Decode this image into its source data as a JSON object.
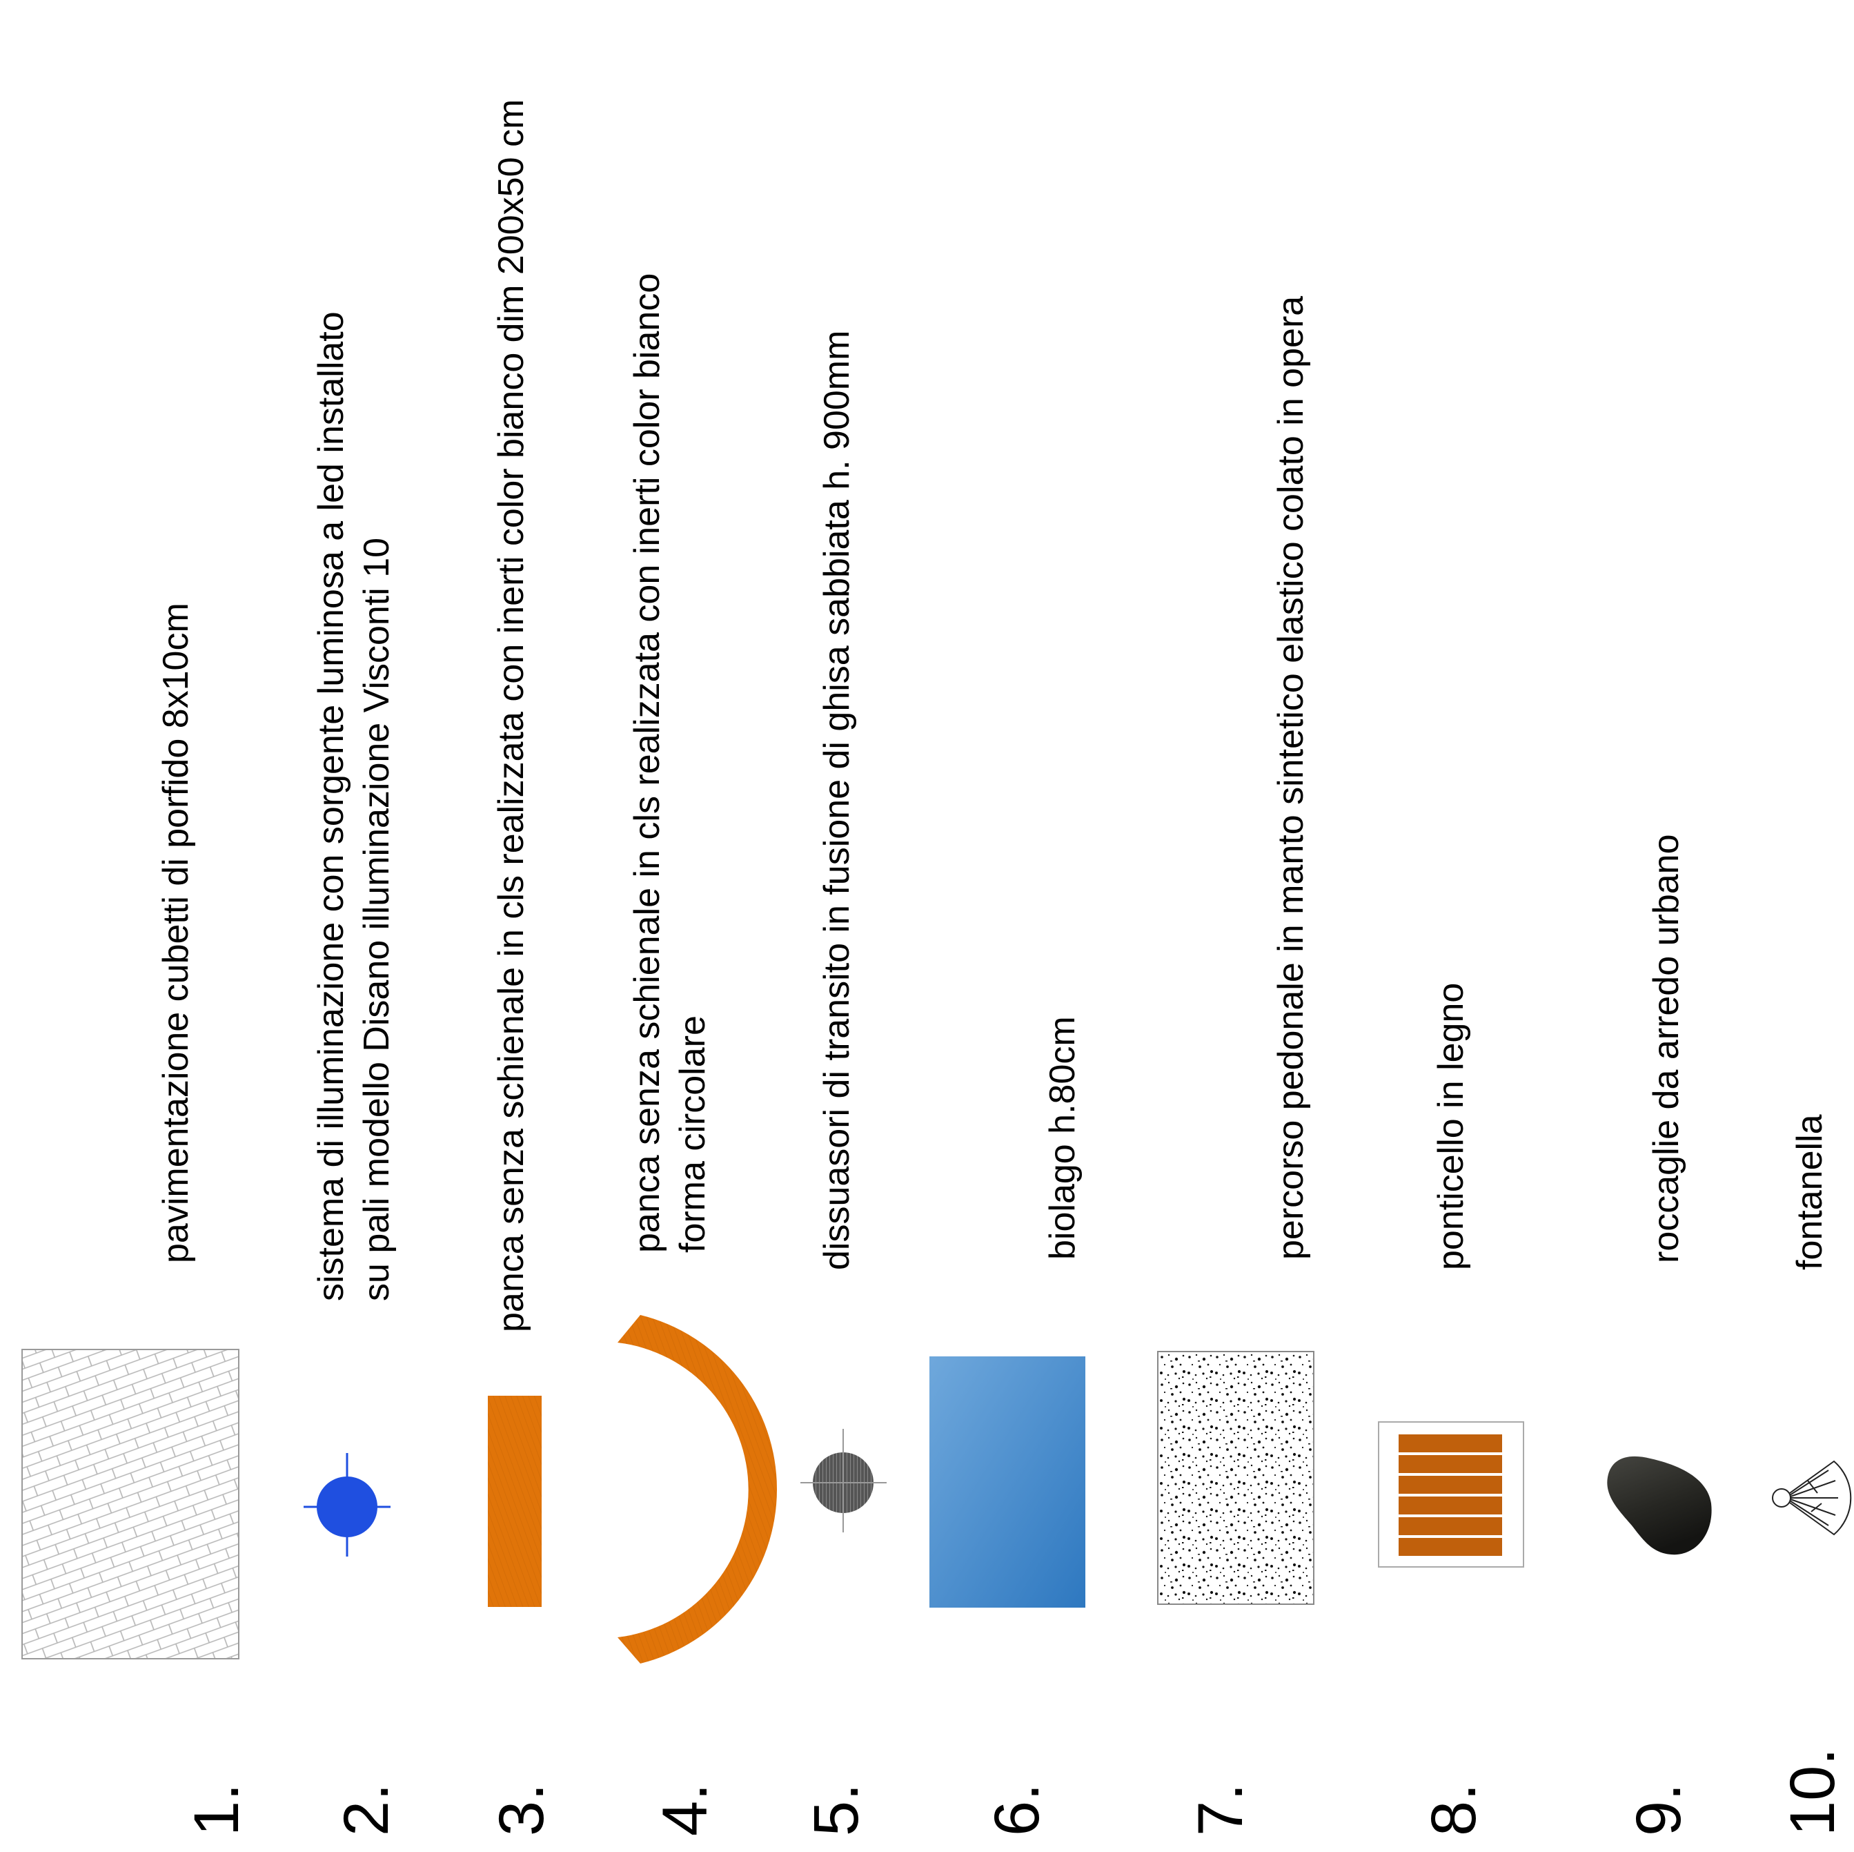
{
  "legend": {
    "items": [
      {
        "number": "1.",
        "lines": [
          "pavimentazione cubetti di porfido 8x10cm"
        ],
        "symbol": "paving-hatch-icon"
      },
      {
        "number": "2.",
        "lines": [
          "sistema di illuminazione con sorgente luminosa a led installato",
          "su pali modello Disano illuminazione Visconti 10"
        ],
        "symbol": "lamp-post-icon"
      },
      {
        "number": "3.",
        "lines": [
          "panca senza schienale in cls realizzata con inerti color bianco dim 200x50 cm"
        ],
        "symbol": "straight-bench-icon"
      },
      {
        "number": "4.",
        "lines": [
          "panca senza schienale in cls realizzata con inerti color bianco",
          "forma circolare"
        ],
        "symbol": "curved-bench-icon"
      },
      {
        "number": "5.",
        "lines": [
          "dissuasori di transito in fusione di ghisa sabbiata h. 900mm"
        ],
        "symbol": "bollard-icon"
      },
      {
        "number": "6.",
        "lines": [
          "biolago h.80cm"
        ],
        "symbol": "biolake-icon"
      },
      {
        "number": "7.",
        "lines": [
          "percorso pedonale in manto sintetico elastico colato in opera"
        ],
        "symbol": "pedestrian-path-icon"
      },
      {
        "number": "8.",
        "lines": [
          "ponticello in legno"
        ],
        "symbol": "wooden-bridge-icon"
      },
      {
        "number": "9.",
        "lines": [
          "roccaglie da arredo urbano"
        ],
        "symbol": "rock-icon"
      },
      {
        "number": "10.",
        "lines": [
          "fontanella"
        ],
        "symbol": "fountain-icon"
      }
    ]
  },
  "colors": {
    "lamp": "#1f4fe0",
    "bench": "#e07409",
    "bollard": "#555555",
    "lake_light": "#6fa8dc",
    "lake_dark": "#2e78c0",
    "bridge": "#c0600c",
    "rock": "#2a2a26"
  }
}
